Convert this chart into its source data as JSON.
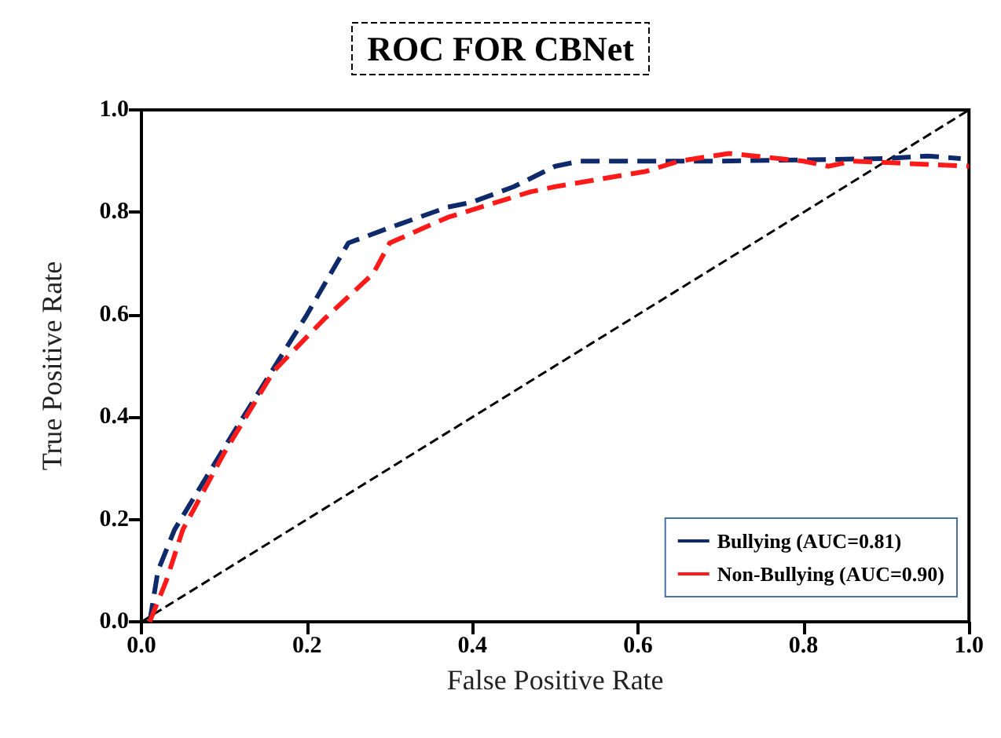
{
  "chart_data": {
    "type": "line",
    "title": "ROC FOR CBNet",
    "xlabel": "False Positive Rate",
    "ylabel": "True Positive Rate",
    "xlim": [
      0,
      1
    ],
    "ylim": [
      0,
      1
    ],
    "xticks": [
      {
        "value": 0,
        "label": "0.0"
      },
      0.2,
      0.4,
      0.6,
      0.8,
      {
        "value": 1,
        "label": "1.0"
      }
    ],
    "yticks": [
      {
        "value": 0,
        "label": "0.0"
      },
      0.2,
      0.4,
      0.6,
      0.8,
      {
        "value": 1,
        "label": "1.0"
      }
    ],
    "grid": false,
    "legend": "bottom right",
    "line_style": "dashed",
    "marker": "none",
    "series": [
      {
        "name": "Bullying (AUC=0.81)",
        "color": "#0f2a6b",
        "x": [
          0.01,
          0.02,
          0.04,
          0.1,
          0.15,
          0.2,
          0.25,
          0.3,
          0.37,
          0.4,
          0.45,
          0.5,
          0.53,
          0.7,
          0.9,
          0.95,
          0.99
        ],
        "values": [
          0,
          0.1,
          0.18,
          0.34,
          0.47,
          0.6,
          0.74,
          0.77,
          0.81,
          0.82,
          0.85,
          0.89,
          0.9,
          0.9,
          0.905,
          0.91,
          0.905
        ]
      },
      {
        "name": "Non-Bullying (AUC=0.90)",
        "color": "#ff1a1a",
        "x": [
          0.01,
          0.03,
          0.05,
          0.1,
          0.16,
          0.22,
          0.28,
          0.3,
          0.37,
          0.47,
          0.5,
          0.61,
          0.65,
          0.71,
          0.8,
          0.83,
          0.86,
          1.0
        ],
        "values": [
          0,
          0.08,
          0.18,
          0.33,
          0.49,
          0.59,
          0.68,
          0.74,
          0.79,
          0.84,
          0.85,
          0.88,
          0.9,
          0.915,
          0.9,
          0.89,
          0.9,
          0.89
        ]
      },
      {
        "color": "#000000",
        "x": [
          0,
          1
        ],
        "values": [
          0,
          1
        ]
      }
    ]
  }
}
